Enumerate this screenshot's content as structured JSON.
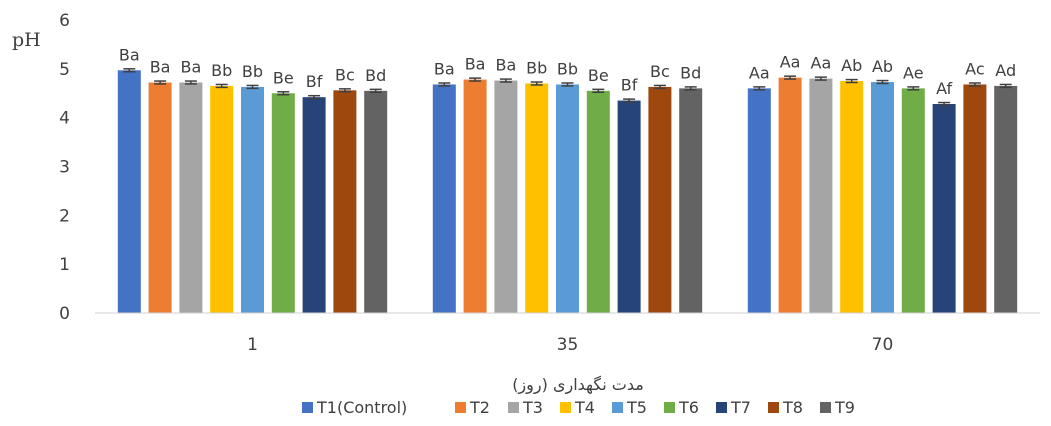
{
  "chart_data": {
    "type": "bar",
    "ylabel": "pH",
    "xlabel": "مدت نگهداری (روز)",
    "ylim": [
      0,
      6
    ],
    "yticks": [
      0,
      1,
      2,
      3,
      4,
      5,
      6
    ],
    "grid": false,
    "legend_position": "bottom",
    "categories": [
      "1",
      "35",
      "70"
    ],
    "series": [
      {
        "name": "T1(Control)",
        "color": "#4472c4",
        "values": [
          4.97,
          4.68,
          4.6
        ],
        "labels": [
          "Ba",
          "Ba",
          "Aa"
        ]
      },
      {
        "name": "T2",
        "color": "#ed7d31",
        "values": [
          4.72,
          4.78,
          4.82
        ],
        "labels": [
          "Ba",
          "Ba",
          "Aa"
        ]
      },
      {
        "name": "T3",
        "color": "#a5a5a5",
        "values": [
          4.72,
          4.76,
          4.8
        ],
        "labels": [
          "Ba",
          "Ba",
          "Aa"
        ]
      },
      {
        "name": "T4",
        "color": "#ffc000",
        "values": [
          4.65,
          4.7,
          4.75
        ],
        "labels": [
          "Bb",
          "Bb",
          "Ab"
        ]
      },
      {
        "name": "T5",
        "color": "#5b9bd5",
        "values": [
          4.63,
          4.68,
          4.73
        ],
        "labels": [
          "Bb",
          "Bb",
          "Ab"
        ]
      },
      {
        "name": "T6",
        "color": "#70ad47",
        "values": [
          4.5,
          4.55,
          4.6
        ],
        "labels": [
          "Be",
          "Be",
          "Ae"
        ]
      },
      {
        "name": "T7",
        "color": "#264478",
        "values": [
          4.42,
          4.35,
          4.28
        ],
        "labels": [
          "Bf",
          "Bf",
          "Af"
        ]
      },
      {
        "name": "T8",
        "color": "#9e480e",
        "values": [
          4.56,
          4.63,
          4.68
        ],
        "labels": [
          "Bc",
          "Bc",
          "Ac"
        ]
      },
      {
        "name": "T9",
        "color": "#636363",
        "values": [
          4.55,
          4.6,
          4.65
        ],
        "labels": [
          "Bd",
          "Bd",
          "Ad"
        ]
      }
    ]
  }
}
